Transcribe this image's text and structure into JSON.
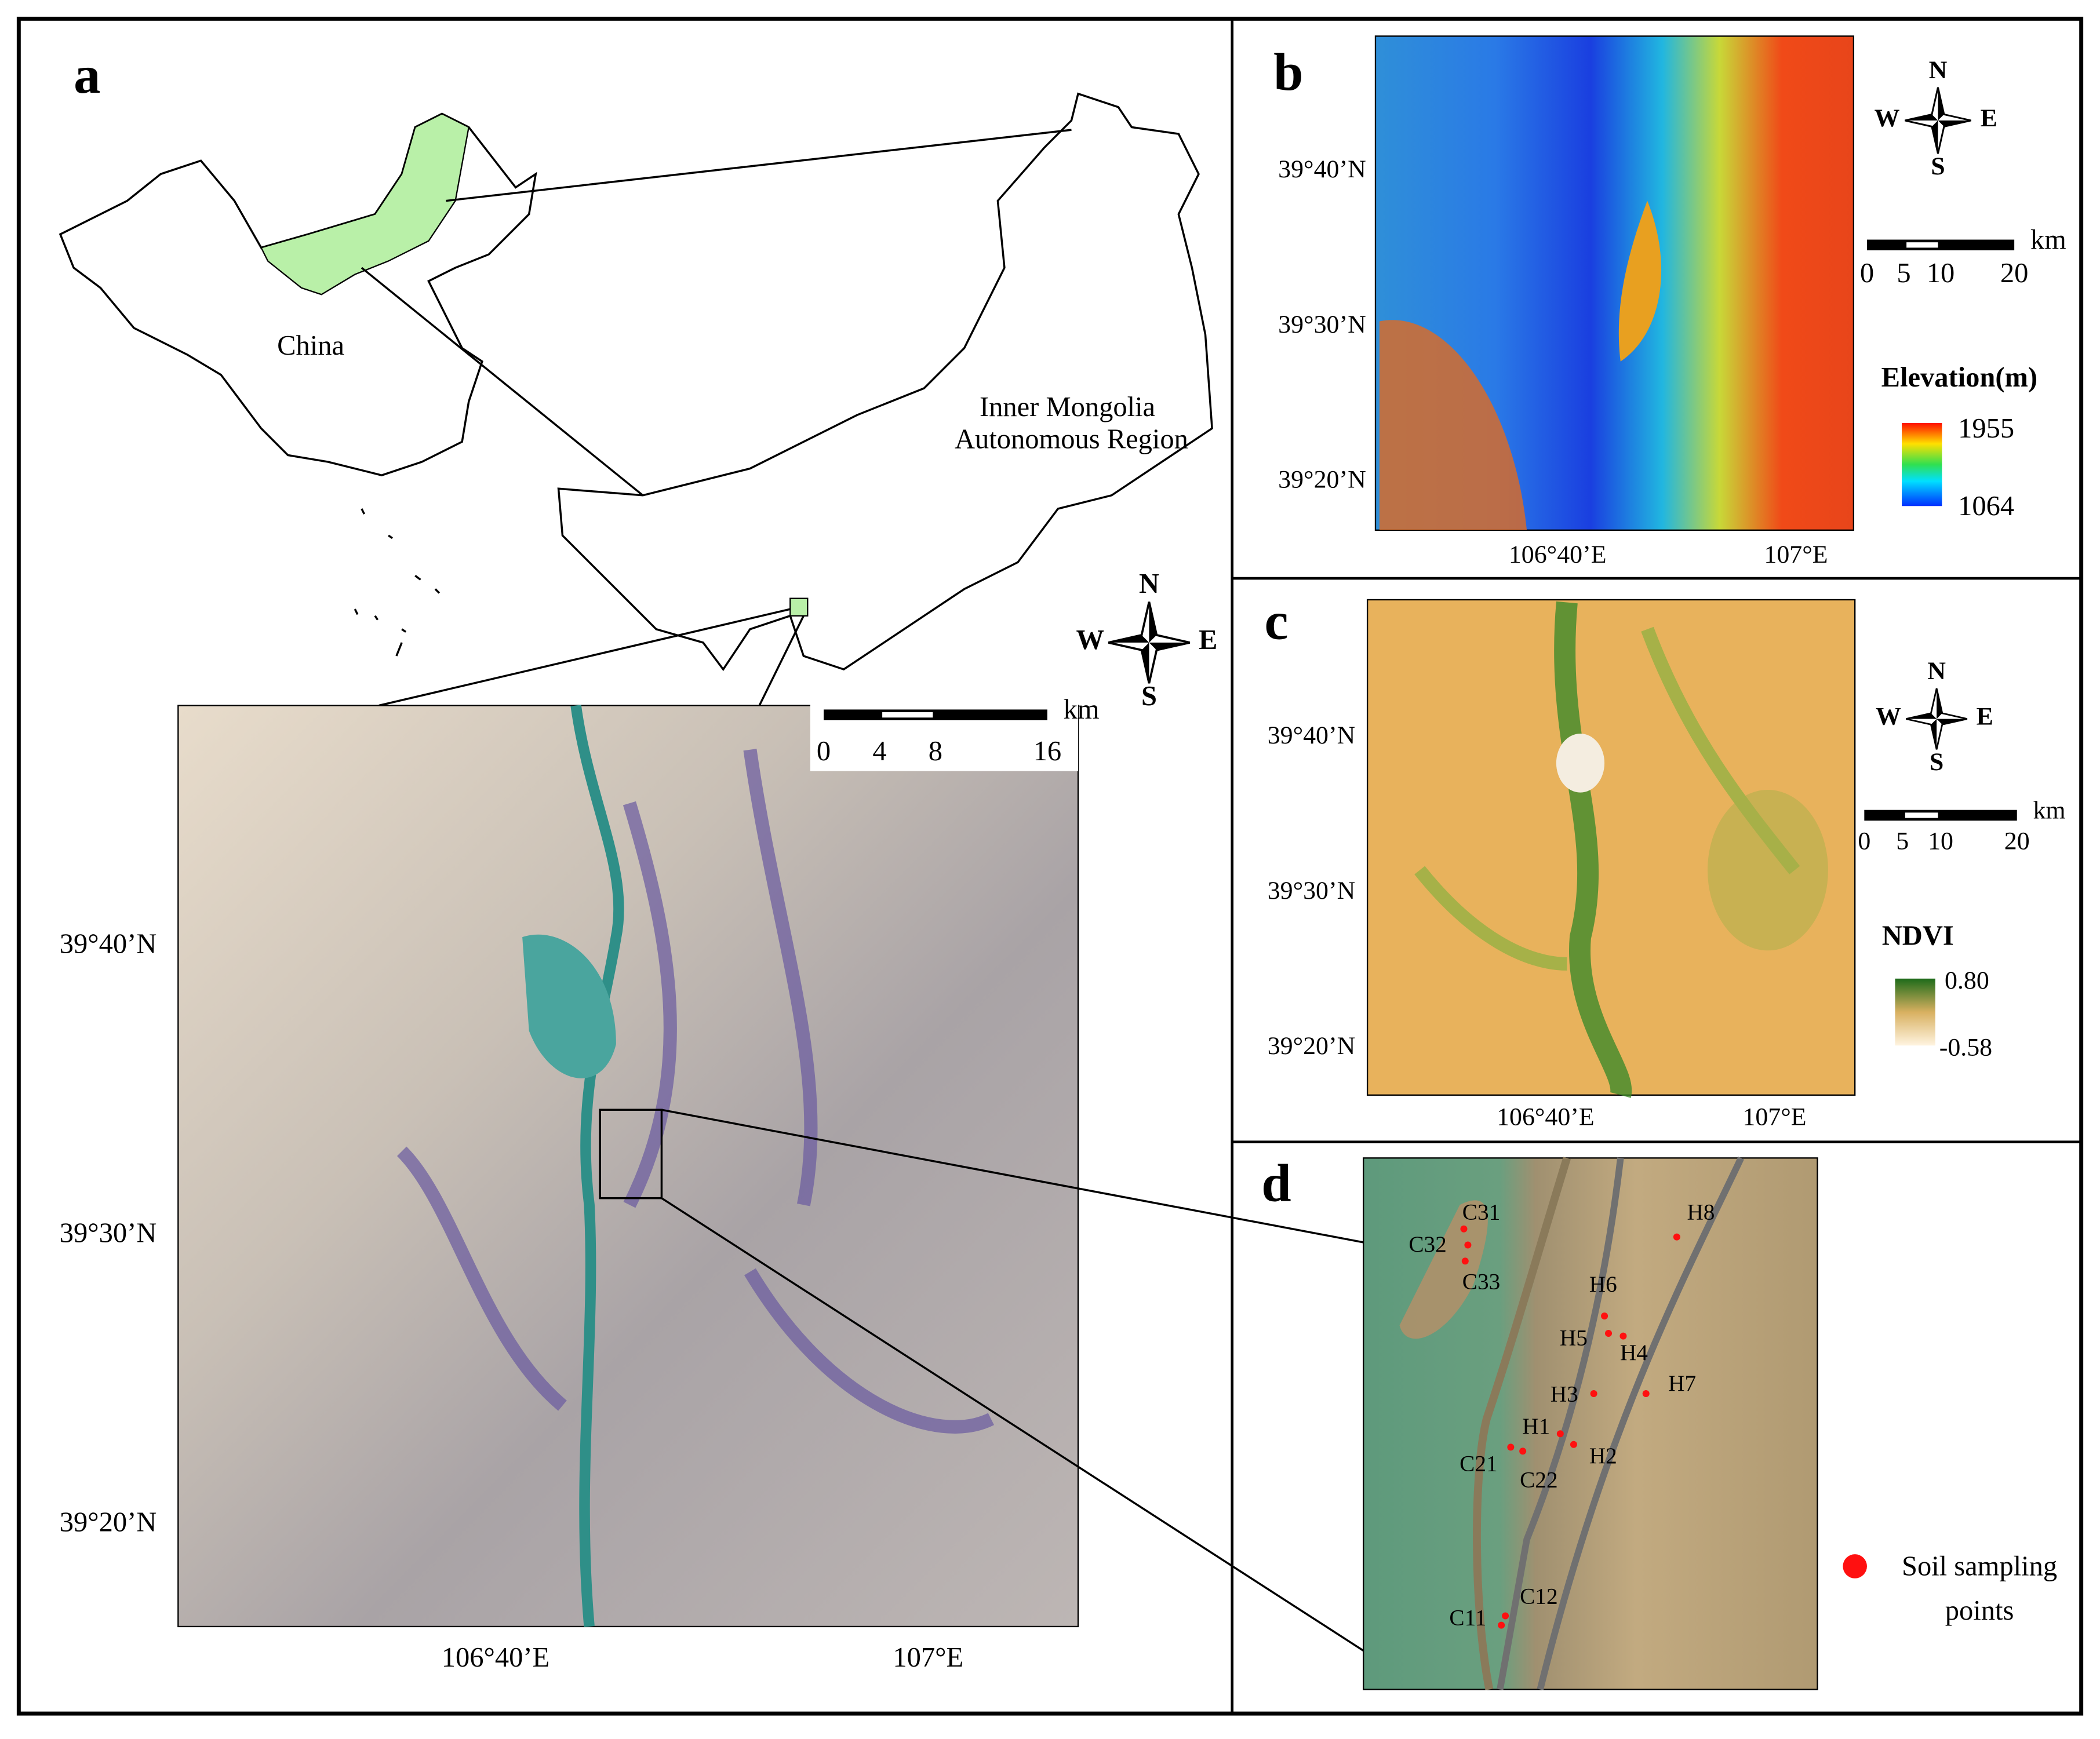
{
  "panels": [
    {
      "label": "a",
      "country": "China",
      "region": [
        "Inner Mongolia",
        "Autonomous Region"
      ],
      "compass": {
        "north": "N",
        "south": "S",
        "west": "W",
        "east": "E"
      },
      "scale_unit": "km",
      "scale_ticks": [
        "0",
        "4",
        "8",
        "16"
      ],
      "lat_labels": [
        "39°40’N",
        "39°30’N",
        "39°20’N"
      ],
      "lon_labels": [
        "106°40’E",
        "107°E"
      ]
    },
    {
      "label": "b",
      "compass": {
        "north": "N",
        "south": "S",
        "west": "W",
        "east": "E"
      },
      "scale_unit": "km",
      "scale_ticks": [
        "0",
        "5",
        "10",
        "20"
      ],
      "lat_labels": [
        "39°40’N",
        "39°30’N",
        "39°20’N"
      ],
      "lon_labels": [
        "106°40’E",
        "107°E"
      ],
      "legend": {
        "title": "Elevation(m)",
        "max": "1955",
        "min": "1064"
      }
    },
    {
      "label": "c",
      "compass": {
        "north": "N",
        "south": "S",
        "west": "W",
        "east": "E"
      },
      "scale_unit": "km",
      "scale_ticks": [
        "0",
        "5",
        "10",
        "20"
      ],
      "lat_labels": [
        "39°40’N",
        "39°30’N",
        "39°20’N"
      ],
      "lon_labels": [
        "106°40’E",
        "107°E"
      ],
      "legend": {
        "title": "NDVI",
        "max": "0.80",
        "min": "-0.58"
      }
    },
    {
      "label": "d",
      "points": [
        "C31",
        "C32",
        "C33",
        "H8",
        "H6",
        "H5",
        "H4",
        "H7",
        "H3",
        "H1",
        "H2",
        "C21",
        "C22",
        "C12",
        "C11"
      ],
      "legend": [
        "Soil sampling",
        "points"
      ]
    }
  ]
}
